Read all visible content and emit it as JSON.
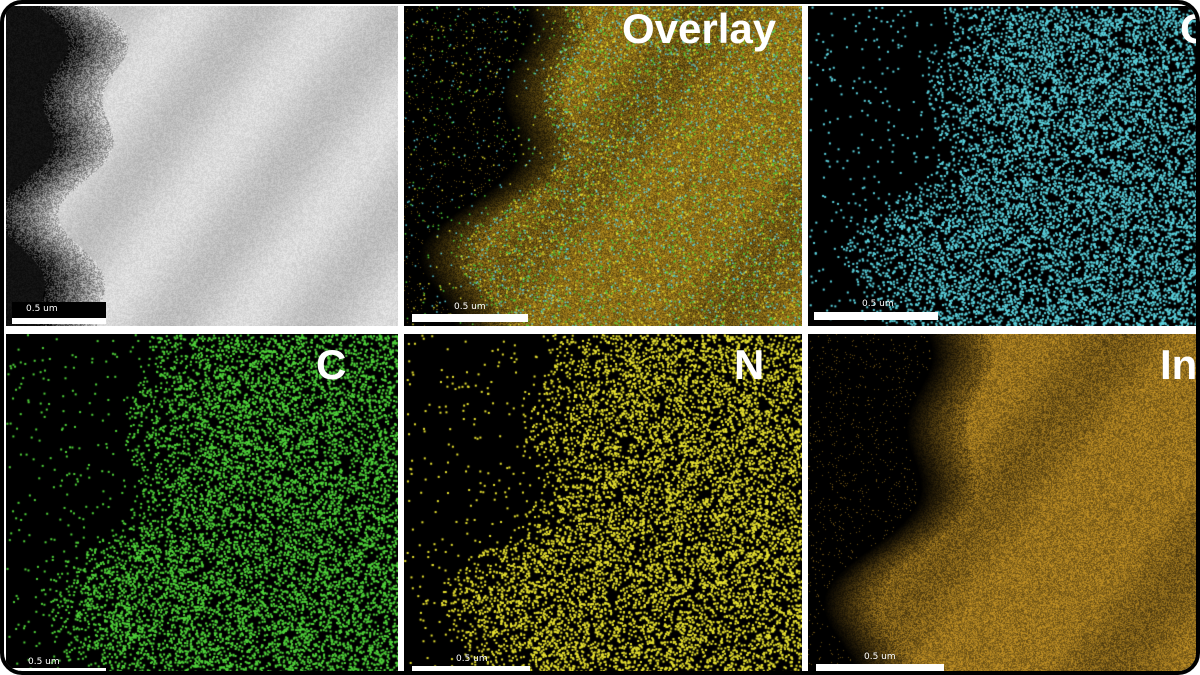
{
  "panels": [
    {
      "id": "sem",
      "label": "",
      "style": "sem",
      "scale_text": "0.5 um"
    },
    {
      "id": "overlay",
      "label": "Overlay",
      "style": "overlay",
      "scale_text": "0.5 um"
    },
    {
      "id": "o",
      "label": "O",
      "style": "dots",
      "color": "#5ad0dc",
      "scale_text": "0.5 um"
    },
    {
      "id": "c",
      "label": "C",
      "style": "dots",
      "color": "#4fd23a",
      "scale_text": "0.5 um"
    },
    {
      "id": "n",
      "label": "N",
      "style": "dots",
      "color": "#e6e030",
      "scale_text": "0.5 um"
    },
    {
      "id": "in",
      "label": "In",
      "style": "dense",
      "color": "#d6a12a",
      "scale_text": "0.5 um"
    }
  ]
}
